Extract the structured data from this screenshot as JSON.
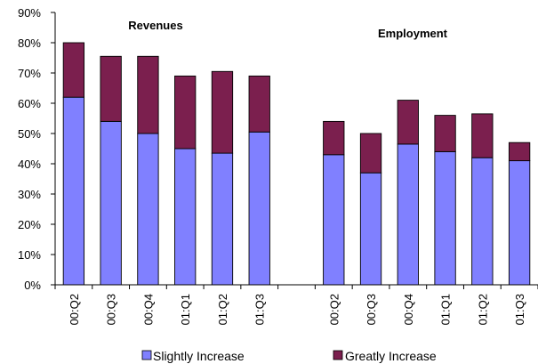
{
  "chart_data": {
    "type": "bar",
    "stacked": true,
    "groups": [
      {
        "title": "Revenues",
        "categories": [
          "00:Q2",
          "00:Q3",
          "00:Q4",
          "01:Q1",
          "01:Q2",
          "01:Q3"
        ],
        "series": [
          {
            "name": "Slightly Increase",
            "values": [
              62,
              54,
              50,
              45,
              43.5,
              50.5
            ]
          },
          {
            "name": "Greatly Increase",
            "values": [
              18,
              21.5,
              25.5,
              24,
              27,
              18.5
            ]
          }
        ]
      },
      {
        "title": "Employment",
        "categories": [
          "00:Q2",
          "00:Q3",
          "00:Q4",
          "01:Q1",
          "01:Q2",
          "01:Q3"
        ],
        "series": [
          {
            "name": "Slightly Increase",
            "values": [
              43,
              37,
              46.5,
              44,
              42,
              41
            ]
          },
          {
            "name": "Greatly Increase",
            "values": [
              11,
              13,
              14.5,
              12,
              14.5,
              6
            ]
          }
        ]
      }
    ],
    "ylim": [
      0,
      90
    ],
    "yticks": [
      "0%",
      "10%",
      "20%",
      "30%",
      "40%",
      "50%",
      "60%",
      "70%",
      "80%",
      "90%"
    ],
    "colors": {
      "Slightly Increase": "#8080ff",
      "Greatly Increase": "#7b1f4e"
    },
    "legend": {
      "position": "bottom",
      "items": [
        {
          "name": "Slightly Increase",
          "color": "#8080ff"
        },
        {
          "name": "Greatly Increase",
          "color": "#7b1f4e"
        }
      ]
    },
    "grid": false
  }
}
